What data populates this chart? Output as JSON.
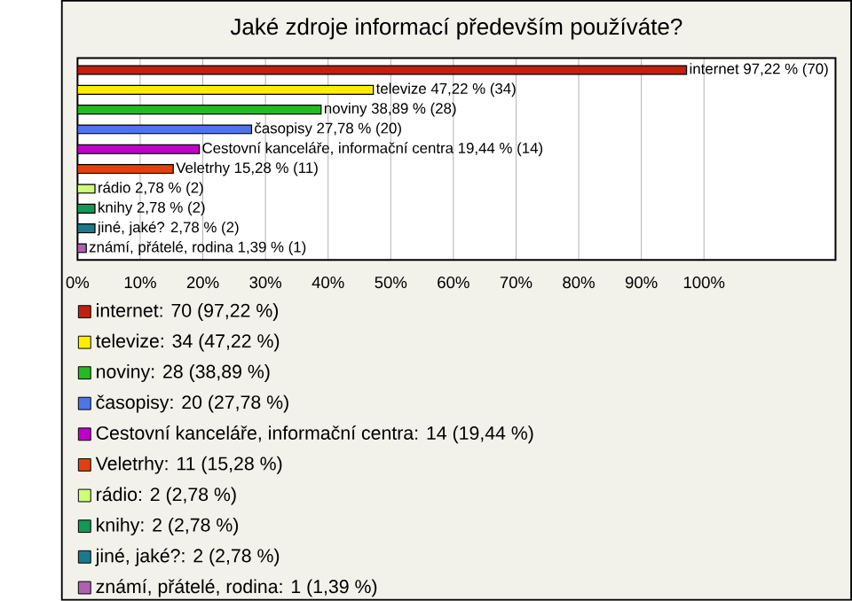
{
  "chart_data": {
    "type": "bar",
    "orientation": "horizontal",
    "title": "Jaké zdroje informací především používáte?",
    "categories": [
      null,
      null,
      null,
      null,
      null,
      null,
      null,
      null,
      null,
      null
    ],
    "xlim": [
      0,
      121
    ],
    "xticks": [
      {
        "value": 0,
        "label": "0%"
      },
      {
        "value": 10,
        "label": "10%"
      },
      {
        "value": 20,
        "label": "20%"
      },
      {
        "value": 30,
        "label": "30%"
      },
      {
        "value": 40,
        "label": "40%"
      },
      {
        "value": 50,
        "label": "50%"
      },
      {
        "value": 60,
        "label": "60%"
      },
      {
        "value": 70,
        "label": "70%"
      },
      {
        "value": 80,
        "label": "80%"
      },
      {
        "value": 90,
        "label": "90%"
      },
      {
        "value": 100,
        "label": "100%"
      }
    ],
    "grid": "x",
    "tick_labels": "x",
    "legend": "bottom",
    "series": [
      {
        "name": "internet: 70 (97,22 %)",
        "color": "#c0200f",
        "values": [
          97.22,
          null,
          null,
          null,
          null,
          null,
          null,
          null,
          null,
          null
        ],
        "value_labels": [
          "internet 97,22 % (70)",
          null,
          null,
          null,
          null,
          null,
          null,
          null,
          null,
          null
        ]
      },
      {
        "name": "televize: 34 (47,22 %)",
        "color": "#ffee00",
        "values": [
          null,
          47.22,
          null,
          null,
          null,
          null,
          null,
          null,
          null,
          null
        ],
        "value_labels": [
          null,
          "televize 47,22 % (34)",
          null,
          null,
          null,
          null,
          null,
          null,
          null,
          null
        ]
      },
      {
        "name": "noviny: 28 (38,89 %)",
        "color": "#22bb22",
        "values": [
          null,
          null,
          38.89,
          null,
          null,
          null,
          null,
          null,
          null,
          null
        ],
        "value_labels": [
          null,
          null,
          "noviny 38,89 % (28)",
          null,
          null,
          null,
          null,
          null,
          null,
          null
        ]
      },
      {
        "name": "časopisy: 20 (27,78 %)",
        "color": "#4f74e8",
        "values": [
          null,
          null,
          null,
          27.78,
          null,
          null,
          null,
          null,
          null,
          null
        ],
        "value_labels": [
          null,
          null,
          null,
          "časopisy 27,78 % (20)",
          null,
          null,
          null,
          null,
          null,
          null
        ]
      },
      {
        "name": "Cestovní kanceláře, informační centra: 14 (19,44 %)",
        "color": "#c000c8",
        "values": [
          null,
          null,
          null,
          null,
          19.44,
          null,
          null,
          null,
          null,
          null
        ],
        "value_labels": [
          null,
          null,
          null,
          null,
          "Cestovní kanceláře, informační centra 19,44 % (14)",
          null,
          null,
          null,
          null,
          null
        ]
      },
      {
        "name": "Veletrhy: 11 (15,28 %)",
        "color": "#e04010",
        "values": [
          null,
          null,
          null,
          null,
          null,
          15.28,
          null,
          null,
          null,
          null
        ],
        "value_labels": [
          null,
          null,
          null,
          null,
          null,
          "Veletrhy 15,28 % (11)",
          null,
          null,
          null,
          null
        ]
      },
      {
        "name": "rádio: 2 (2,78 %)",
        "color": "#ccff77",
        "values": [
          null,
          null,
          null,
          null,
          null,
          null,
          2.78,
          null,
          null,
          null
        ],
        "value_labels": [
          null,
          null,
          null,
          null,
          null,
          null,
          "rádio 2,78 % (2)",
          null,
          null,
          null
        ]
      },
      {
        "name": "knihy: 2 (2,78 %)",
        "color": "#119955",
        "values": [
          null,
          null,
          null,
          null,
          null,
          null,
          null,
          2.78,
          null,
          null
        ],
        "value_labels": [
          null,
          null,
          null,
          null,
          null,
          null,
          null,
          "knihy 2,78 % (2)",
          null,
          null
        ]
      },
      {
        "name": "jiné, jaké?: 2 (2,78 %)",
        "color": "#1a7a8a",
        "values": [
          null,
          null,
          null,
          null,
          null,
          null,
          null,
          null,
          2.78,
          null
        ],
        "value_labels": [
          null,
          null,
          null,
          null,
          null,
          null,
          null,
          null,
          "jiné, jaké? 2,78 % (2)",
          null
        ]
      },
      {
        "name": "známí, přátelé, rodina: 1 (1,39 %)",
        "color": "#b060b0",
        "values": [
          null,
          null,
          null,
          null,
          null,
          null,
          null,
          null,
          null,
          1.39
        ],
        "value_labels": [
          null,
          null,
          null,
          null,
          null,
          null,
          null,
          null,
          null,
          "známí, přátelé, rodina 1,39 % (1)"
        ]
      }
    ]
  }
}
